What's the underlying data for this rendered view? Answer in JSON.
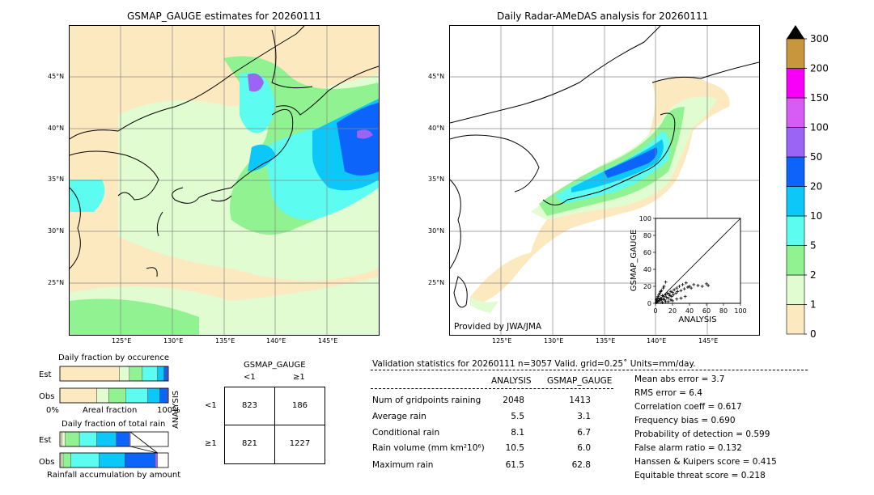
{
  "left_map": {
    "title": "GSMAP_GAUGE estimates for 20260111",
    "lat_labels": [
      "45°N",
      "40°N",
      "35°N",
      "30°N",
      "25°N"
    ],
    "lon_labels": [
      "125°E",
      "130°E",
      "135°E",
      "140°E",
      "145°E"
    ]
  },
  "right_map": {
    "title": "Daily Radar-AMeDAS analysis for 20260111",
    "lat_labels": [
      "45°N",
      "40°N",
      "35°N",
      "30°N",
      "25°N"
    ],
    "lon_labels": [
      "125°E",
      "130°E",
      "135°E",
      "140°E",
      "145°E"
    ],
    "credit": "Provided by JWA/JMA"
  },
  "colorbar": {
    "labels": [
      "0",
      "1",
      "2",
      "5",
      "10",
      "20",
      "50",
      "100",
      "150",
      "200",
      "300"
    ],
    "colors": [
      "#fde9bf",
      "#e0fcd0",
      "#90f290",
      "#5cfcf0",
      "#0cc8f8",
      "#0c64fa",
      "#9b64f5",
      "#d65cf5",
      "#f800f8",
      "#c8963c"
    ]
  },
  "chart_data": [
    {
      "type": "scatter",
      "title": "",
      "xlabel": "ANALYSIS",
      "ylabel": "GSMAP_GAUGE",
      "xlim": [
        0,
        100
      ],
      "ylim": [
        0,
        100
      ],
      "xticks": [
        "0",
        "20",
        "40",
        "60",
        "80",
        "100"
      ],
      "yticks": [
        "0",
        "20",
        "40",
        "60",
        "80",
        "100"
      ],
      "reference_line": "y = x",
      "points": [
        [
          1,
          1
        ],
        [
          2,
          3
        ],
        [
          3,
          2
        ],
        [
          4,
          5
        ],
        [
          5,
          3
        ],
        [
          6,
          6
        ],
        [
          7,
          4
        ],
        [
          8,
          9
        ],
        [
          9,
          5
        ],
        [
          10,
          8
        ],
        [
          11,
          4
        ],
        [
          12,
          10
        ],
        [
          13,
          7
        ],
        [
          14,
          12
        ],
        [
          15,
          6
        ],
        [
          16,
          11
        ],
        [
          17,
          9
        ],
        [
          18,
          14
        ],
        [
          19,
          8
        ],
        [
          20,
          13
        ],
        [
          21,
          10
        ],
        [
          22,
          16
        ],
        [
          24,
          12
        ],
        [
          25,
          18
        ],
        [
          26,
          14
        ],
        [
          28,
          20
        ],
        [
          30,
          15
        ],
        [
          32,
          22
        ],
        [
          34,
          17
        ],
        [
          36,
          24
        ],
        [
          38,
          19
        ],
        [
          40,
          20
        ],
        [
          42,
          18
        ],
        [
          45,
          22
        ],
        [
          50,
          21
        ],
        [
          55,
          20
        ],
        [
          60,
          23
        ],
        [
          62,
          21
        ],
        [
          3,
          8
        ],
        [
          5,
          12
        ],
        [
          7,
          15
        ],
        [
          9,
          18
        ],
        [
          10,
          20
        ],
        [
          12,
          25
        ],
        [
          4,
          10
        ],
        [
          6,
          14
        ],
        [
          2,
          6
        ],
        [
          1,
          4
        ],
        [
          15,
          2
        ],
        [
          20,
          3
        ],
        [
          25,
          5
        ],
        [
          30,
          6
        ],
        [
          35,
          8
        ],
        [
          8,
          1
        ],
        [
          12,
          2
        ],
        [
          18,
          4
        ]
      ]
    },
    {
      "type": "bar",
      "title": "Daily fraction by occurence",
      "stacked": true,
      "categories": [
        "Est",
        "Obs"
      ],
      "segment_colors": [
        "#fde9bf",
        "#e0fcd0",
        "#90f290",
        "#5cfcf0",
        "#0cc8f8",
        "#0c64fa",
        "#9b64f5"
      ],
      "series": [
        {
          "values": [
            0.55,
            0.34
          ]
        },
        {
          "values": [
            0.09,
            0.11
          ]
        },
        {
          "values": [
            0.12,
            0.16
          ]
        },
        {
          "values": [
            0.14,
            0.2
          ]
        },
        {
          "values": [
            0.06,
            0.11
          ]
        },
        {
          "values": [
            0.03,
            0.07
          ]
        },
        {
          "values": [
            0.01,
            0.01
          ]
        }
      ],
      "xtick_labels": [
        "0%",
        "100%"
      ],
      "xlabel": "Areal fraction"
    },
    {
      "type": "bar",
      "title": "Daily fraction of total rain",
      "stacked": true,
      "categories": [
        "Est",
        "Obs"
      ],
      "segment_colors": [
        "#fde9bf",
        "#e0fcd0",
        "#90f290",
        "#5cfcf0",
        "#0cc8f8",
        "#0c64fa",
        "#9b64f5"
      ],
      "series": [
        {
          "values": [
            0.02,
            0.01
          ]
        },
        {
          "values": [
            0.03,
            0.02
          ]
        },
        {
          "values": [
            0.13,
            0.07
          ]
        },
        {
          "values": [
            0.16,
            0.26
          ]
        },
        {
          "values": [
            0.18,
            0.24
          ]
        },
        {
          "values": [
            0.12,
            0.28
          ]
        },
        {
          "values": [
            0.01,
            0.02
          ]
        }
      ],
      "xlabel": "Rainfall accumulation by amount"
    },
    {
      "type": "table",
      "title": "GSMAP_GAUGE",
      "row_axis_label": "ANALYSIS",
      "col_headers": [
        "<1",
        "≥1"
      ],
      "row_headers": [
        "<1",
        "≥1"
      ],
      "cells": [
        [
          "823",
          "186"
        ],
        [
          "821",
          "1227"
        ]
      ]
    }
  ],
  "validation": {
    "header": "Validation statistics for 20260111  n=3057 Valid. grid=0.25˚ Units=mm/day.",
    "col_analysis": "ANALYSIS",
    "col_gsmap": "GSMAP_GAUGE",
    "rows": [
      {
        "label": "Num of gridpoints raining",
        "analysis": "2048",
        "gsmap": "1413"
      },
      {
        "label": "Average rain",
        "analysis": "5.5",
        "gsmap": "3.1"
      },
      {
        "label": "Conditional rain",
        "analysis": "8.1",
        "gsmap": "6.7"
      },
      {
        "label": "Rain volume (mm km²10⁶)",
        "analysis": "10.5",
        "gsmap": "6.0"
      },
      {
        "label": "Maximum rain",
        "analysis": "61.5",
        "gsmap": "62.8"
      }
    ],
    "scores": [
      "Mean abs error =    3.7",
      "RMS error =    6.4",
      "Correlation coeff =  0.617",
      "Frequency bias =  0.690",
      "Probability of detection =  0.599",
      "False alarm ratio =  0.132",
      "Hanssen & Kuipers score =  0.415",
      "Equitable threat score =  0.218"
    ]
  }
}
